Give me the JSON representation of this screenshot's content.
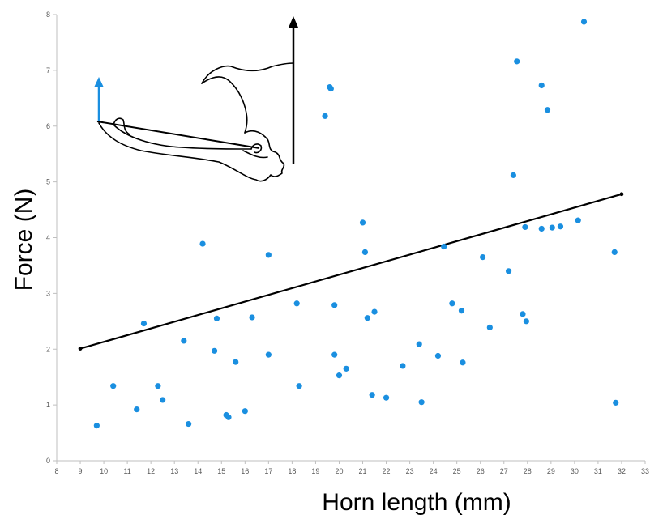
{
  "chart_data": {
    "type": "scatter",
    "title": "",
    "xlabel": "Horn length (mm)",
    "ylabel": "Force (N)",
    "xlim": [
      8,
      33
    ],
    "ylim": [
      0,
      8
    ],
    "x_ticks": [
      "8",
      "9",
      "10",
      "11",
      "12",
      "13",
      "14",
      "15",
      "16",
      "17",
      "18",
      "19",
      "20",
      "21",
      "22",
      "23",
      "24",
      "25",
      "26",
      "27",
      "28",
      "29",
      "30",
      "31",
      "32",
      "33"
    ],
    "y_ticks": [
      "0",
      "1",
      "2",
      "3",
      "4",
      "5",
      "6",
      "7",
      "8"
    ],
    "grid": false,
    "legend": "none",
    "series": [
      {
        "color": "#1a8fe0",
        "points": [
          [
            9.7,
            0.63
          ],
          [
            10.4,
            1.34
          ],
          [
            11.4,
            0.92
          ],
          [
            11.7,
            2.46
          ],
          [
            12.3,
            1.34
          ],
          [
            12.5,
            1.09
          ],
          [
            13.4,
            2.15
          ],
          [
            13.6,
            0.66
          ],
          [
            14.2,
            3.89
          ],
          [
            14.7,
            1.97
          ],
          [
            14.8,
            2.55
          ],
          [
            15.2,
            0.82
          ],
          [
            15.3,
            0.78
          ],
          [
            15.6,
            1.77
          ],
          [
            16.0,
            0.89
          ],
          [
            16.3,
            2.57
          ],
          [
            17.0,
            3.69
          ],
          [
            17.0,
            1.9
          ],
          [
            18.2,
            2.82
          ],
          [
            18.3,
            1.34
          ],
          [
            19.4,
            6.18
          ],
          [
            19.6,
            6.7
          ],
          [
            19.65,
            6.67
          ],
          [
            19.8,
            2.79
          ],
          [
            19.8,
            1.9
          ],
          [
            20.0,
            1.53
          ],
          [
            20.3,
            1.65
          ],
          [
            21.0,
            4.27
          ],
          [
            21.1,
            3.74
          ],
          [
            21.2,
            2.56
          ],
          [
            21.4,
            1.18
          ],
          [
            21.5,
            2.67
          ],
          [
            22.0,
            1.13
          ],
          [
            22.7,
            1.7
          ],
          [
            23.4,
            2.09
          ],
          [
            23.5,
            1.05
          ],
          [
            24.2,
            1.88
          ],
          [
            24.45,
            3.84
          ],
          [
            24.8,
            2.82
          ],
          [
            25.2,
            2.69
          ],
          [
            25.25,
            1.76
          ],
          [
            26.1,
            3.65
          ],
          [
            26.4,
            2.39
          ],
          [
            27.2,
            3.4
          ],
          [
            27.4,
            5.12
          ],
          [
            27.55,
            7.16
          ],
          [
            27.8,
            2.63
          ],
          [
            27.9,
            4.19
          ],
          [
            27.95,
            2.5
          ],
          [
            28.6,
            4.16
          ],
          [
            28.6,
            6.73
          ],
          [
            28.85,
            6.29
          ],
          [
            29.05,
            4.18
          ],
          [
            29.4,
            4.2
          ],
          [
            30.15,
            4.31
          ],
          [
            30.4,
            7.87
          ],
          [
            31.7,
            3.74
          ],
          [
            31.75,
            1.04
          ]
        ]
      }
    ],
    "trendline": {
      "color": "#000000",
      "points": [
        [
          9.0,
          2.01
        ],
        [
          32.0,
          4.78
        ]
      ]
    }
  }
}
